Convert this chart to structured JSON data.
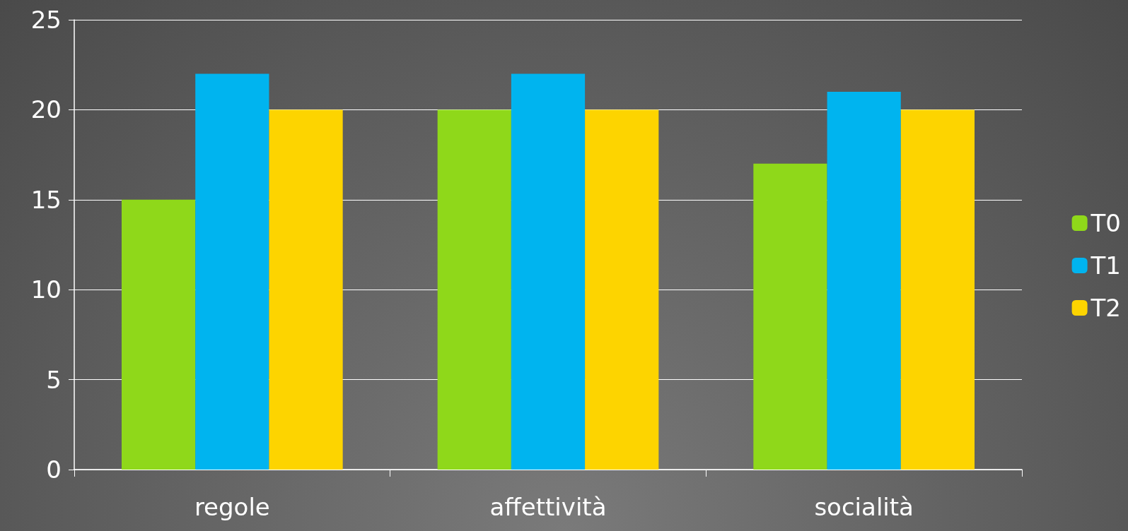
{
  "chart_data": {
    "type": "bar",
    "categories": [
      "regole",
      "affettività",
      "socialità"
    ],
    "series": [
      {
        "name": "T0",
        "color": "#8fd81a",
        "values": [
          15,
          20,
          17
        ]
      },
      {
        "name": "T1",
        "color": "#00b4ef",
        "values": [
          22,
          22,
          21
        ]
      },
      {
        "name": "T2",
        "color": "#fdd400",
        "values": [
          20,
          20,
          20
        ]
      }
    ],
    "ylim": [
      0,
      25
    ],
    "yticks": [
      0,
      5,
      10,
      15,
      20,
      25
    ],
    "grid": "y",
    "legend": "right"
  }
}
